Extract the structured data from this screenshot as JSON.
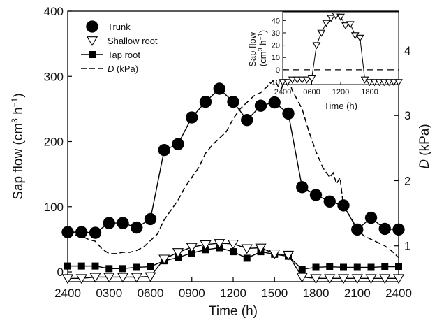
{
  "chart_data": [
    {
      "type": "line",
      "x_label_main": "Time (h)",
      "xticks": [
        "2400",
        "0300",
        "0600",
        "0900",
        "1200",
        "1500",
        "1800",
        "2100",
        "2400"
      ],
      "xlim": [
        0,
        24
      ],
      "ylabel": "Sap flow (cm³ h⁻¹)",
      "ylabel_parts": {
        "pre": "Sap flow (cm",
        "sup1": "3",
        "mid": " h",
        "sup2": "−1",
        "post": ")"
      },
      "yticks": [
        "0",
        "100",
        "200",
        "300",
        "400"
      ],
      "ylim": [
        -15,
        400
      ],
      "y2label": "D (kPa)",
      "y2label_parts": {
        "italic": "D",
        "rest": " (kPa)"
      },
      "y2ticks": [
        "1",
        "2",
        "3",
        "4"
      ],
      "y2lim": [
        0.45,
        4.6
      ],
      "legend": {
        "placement": "top-left",
        "items": [
          {
            "label": "Trunk",
            "marker": "filled-circle"
          },
          {
            "label": "Shallow root",
            "marker": "open-down-triangle"
          },
          {
            "label": "Tap root",
            "marker": "filled-square"
          },
          {
            "label": "D (kPa)",
            "label_parts": {
              "italic": "D",
              "rest": " (kPa)"
            },
            "marker": "dashed-line"
          }
        ]
      },
      "series": [
        {
          "name": "Trunk",
          "axis": "left",
          "marker": "filled-circle",
          "color": "#000000",
          "x": [
            0,
            1,
            2,
            3,
            4,
            5,
            6,
            7,
            8,
            9,
            10,
            11,
            12,
            13,
            14,
            15,
            16,
            17,
            18,
            19,
            20,
            21,
            22,
            23,
            24
          ],
          "y": [
            61,
            61,
            60,
            75,
            75,
            68,
            81,
            187,
            196,
            237,
            261,
            281,
            261,
            233,
            255,
            260,
            243,
            130,
            118,
            108,
            102,
            65,
            83,
            66,
            65
          ]
        },
        {
          "name": "Shallow root",
          "axis": "left",
          "marker": "open-down-triangle",
          "color": "#000000",
          "x": [
            0,
            1,
            2,
            3,
            4,
            5,
            6,
            7,
            8,
            9,
            10,
            11,
            12,
            13,
            14,
            15,
            16,
            17,
            18,
            19,
            20,
            21,
            22,
            23,
            24
          ],
          "y": [
            -10,
            -10,
            -8,
            -8,
            -8,
            -8,
            -7,
            20,
            30,
            38,
            42,
            44,
            43,
            36,
            37,
            28,
            26,
            -8,
            -10,
            -10,
            -10,
            -10,
            -10,
            -10,
            -10
          ]
        },
        {
          "name": "Tap root",
          "axis": "left",
          "marker": "filled-square",
          "color": "#000000",
          "x": [
            0,
            1,
            2,
            3,
            4,
            5,
            6,
            7,
            8,
            9,
            10,
            11,
            12,
            13,
            14,
            15,
            16,
            17,
            18,
            19,
            20,
            21,
            22,
            23,
            24
          ],
          "y": [
            9,
            9,
            9,
            5,
            5,
            7,
            8,
            17,
            22,
            29,
            34,
            37,
            31,
            21,
            31,
            27,
            24,
            4,
            7,
            8,
            7,
            7,
            7,
            8,
            8
          ]
        },
        {
          "name": "D (kPa)",
          "axis": "right",
          "style": "dashed",
          "color": "#000000",
          "x": [
            0,
            0.5,
            1,
            1.5,
            2,
            2.5,
            3,
            3.5,
            4,
            4.5,
            5,
            5.5,
            6,
            6.5,
            7,
            7.5,
            8,
            8.5,
            9,
            9.5,
            10,
            10.5,
            11,
            11.5,
            12,
            12.5,
            13,
            13.5,
            14,
            14.5,
            15,
            15.25,
            15.5,
            15.75,
            16,
            16.25,
            16.5,
            17,
            17.5,
            18,
            18.5,
            19,
            19.25,
            19.5,
            19.75,
            20,
            20.5,
            21,
            21.5,
            22,
            22.5,
            23,
            23.5,
            24
          ],
          "y": [
            1.22,
            1.17,
            1.15,
            1.1,
            1.07,
            0.95,
            0.88,
            0.88,
            0.9,
            0.9,
            0.93,
            0.98,
            1.08,
            1.18,
            1.4,
            1.55,
            1.7,
            1.9,
            2.05,
            2.2,
            2.42,
            2.55,
            2.65,
            2.75,
            2.95,
            3.1,
            3.2,
            3.3,
            3.35,
            3.45,
            3.55,
            3.45,
            3.4,
            3.6,
            3.65,
            3.4,
            3.3,
            3.1,
            2.75,
            2.45,
            2.2,
            2.05,
            2.12,
            1.95,
            2.05,
            1.6,
            1.45,
            1.25,
            1.15,
            1.1,
            1.05,
            1.0,
            0.92,
            0.82
          ]
        }
      ],
      "grid": false
    },
    {
      "type": "line",
      "inset": true,
      "placement": "top-right",
      "xlabel": "Time (h)",
      "xticks": [
        "2400",
        "0600",
        "1200",
        "1800"
      ],
      "xlim": [
        0,
        24
      ],
      "ylabel": "Sap flow (cm³ h⁻¹)",
      "ylabel_line1": "Sap flow",
      "ylabel_line2_parts": {
        "pre": "(cm",
        "sup1": "3",
        "mid": " h",
        "sup2": "−1",
        "post": ")"
      },
      "yticks": [
        "-10",
        "0",
        "10",
        "20",
        "30",
        "40"
      ],
      "ylim": [
        -12,
        47
      ],
      "zero_reference": "dashed-line",
      "series": [
        {
          "name": "Shallow root",
          "marker": "open-down-triangle",
          "color": "#000000",
          "x": [
            0,
            1,
            2,
            3,
            4,
            5,
            6,
            7,
            8,
            9,
            10,
            11,
            12,
            13,
            14,
            15,
            16,
            17,
            18,
            19,
            20,
            21,
            22,
            23,
            24
          ],
          "y": [
            -10,
            -10,
            -8,
            -8,
            -8,
            -8,
            -7,
            20,
            30,
            38,
            42,
            44,
            43,
            36,
            37,
            28,
            26,
            -8,
            -10,
            -10,
            -10,
            -10,
            -10,
            -10,
            -10
          ]
        }
      ]
    }
  ]
}
